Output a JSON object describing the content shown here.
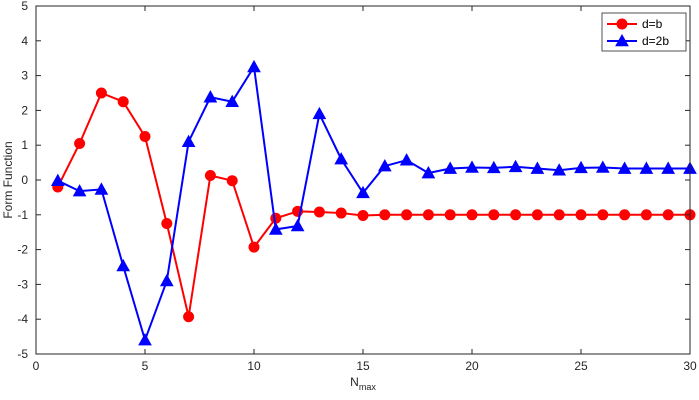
{
  "chart_data": {
    "type": "line",
    "xlabel": "N",
    "xlabel_subscript": "max",
    "ylabel": "Form Function",
    "xlim": [
      0,
      30
    ],
    "ylim": [
      -5,
      5
    ],
    "xticks": [
      0,
      5,
      10,
      15,
      20,
      25,
      30
    ],
    "yticks": [
      -5,
      -4,
      -3,
      -2,
      -1,
      0,
      1,
      2,
      3,
      4,
      5
    ],
    "grid": false,
    "legend_position": "top-right",
    "x": [
      1,
      2,
      3,
      4,
      5,
      6,
      7,
      8,
      9,
      10,
      11,
      12,
      13,
      14,
      15,
      16,
      17,
      18,
      19,
      20,
      21,
      22,
      23,
      24,
      25,
      26,
      27,
      28,
      29,
      30
    ],
    "series": [
      {
        "name": "d=b",
        "color": "#ff0000",
        "marker": "circle",
        "values": [
          -0.2,
          1.05,
          2.5,
          2.25,
          1.25,
          -1.25,
          -3.93,
          0.13,
          -0.02,
          -1.93,
          -1.1,
          -0.9,
          -0.92,
          -0.95,
          -1.02,
          -1.0,
          -1.0,
          -1.0,
          -1.0,
          -1.0,
          -1.0,
          -1.0,
          -1.0,
          -1.0,
          -1.0,
          -1.0,
          -1.0,
          -1.0,
          -1.0,
          -1.0
        ]
      },
      {
        "name": "d=2b",
        "color": "#0000ff",
        "marker": "triangle",
        "values": [
          -0.02,
          -0.32,
          -0.27,
          -2.47,
          -4.6,
          -2.9,
          1.1,
          2.38,
          2.25,
          3.25,
          -1.42,
          -1.32,
          1.9,
          0.6,
          -0.37,
          0.4,
          0.57,
          0.2,
          0.33,
          0.36,
          0.35,
          0.38,
          0.33,
          0.28,
          0.35,
          0.36,
          0.33,
          0.33,
          0.33,
          0.33
        ]
      }
    ]
  }
}
